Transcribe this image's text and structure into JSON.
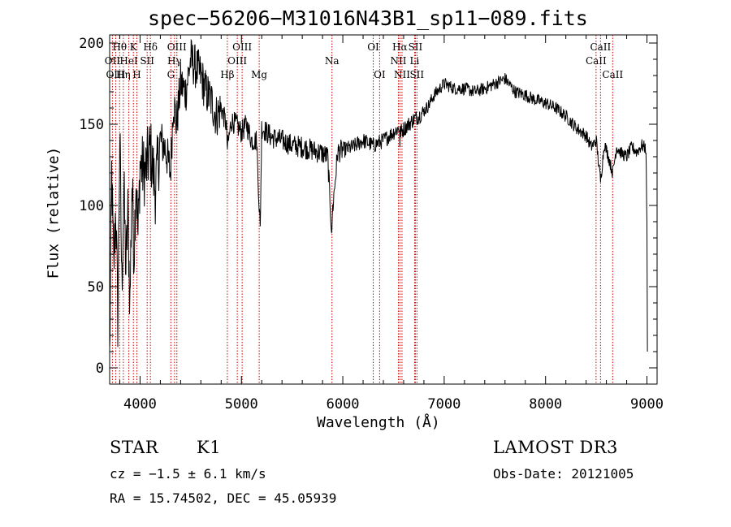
{
  "chart_data": {
    "type": "line",
    "title": "spec−56206−M31016N43B1_sp11−089.fits",
    "xlabel": "Wavelength (Å)",
    "ylabel": "Flux (relative)",
    "xlim": [
      3700,
      9100
    ],
    "ylim": [
      -10,
      205
    ],
    "xticks": [
      4000,
      5000,
      6000,
      7000,
      8000,
      9000
    ],
    "xtick_labels": [
      "4000",
      "5000",
      "6000",
      "7000",
      "8000",
      "9000"
    ],
    "yticks": [
      0,
      50,
      100,
      150,
      200
    ],
    "ytick_labels": [
      "0",
      "50",
      "100",
      "150",
      "200"
    ],
    "grid": false,
    "series": [
      {
        "name": "spectrum",
        "x": [
          3700,
          3720,
          3740,
          3760,
          3780,
          3800,
          3820,
          3840,
          3860,
          3880,
          3900,
          3920,
          3940,
          3960,
          3980,
          4000,
          4050,
          4100,
          4150,
          4200,
          4250,
          4300,
          4330,
          4360,
          4400,
          4450,
          4500,
          4550,
          4600,
          4650,
          4700,
          4750,
          4800,
          4850,
          4862,
          4900,
          4950,
          5000,
          5050,
          5100,
          5150,
          5175,
          5185,
          5200,
          5250,
          5300,
          5400,
          5500,
          5600,
          5700,
          5800,
          5850,
          5890,
          5893,
          5896,
          5950,
          6000,
          6100,
          6200,
          6300,
          6400,
          6500,
          6560,
          6563,
          6566,
          6600,
          6650,
          6700,
          6750,
          6800,
          6850,
          6900,
          7000,
          7100,
          7200,
          7300,
          7400,
          7500,
          7600,
          7700,
          7800,
          7900,
          8000,
          8100,
          8200,
          8300,
          8400,
          8450,
          8500,
          8542,
          8580,
          8620,
          8662,
          8700,
          8750,
          8800,
          8850,
          8900,
          8950,
          8990,
          9000,
          9005
        ],
        "y": [
          5,
          120,
          60,
          100,
          30,
          145,
          50,
          110,
          60,
          95,
          40,
          115,
          70,
          120,
          80,
          125,
          120,
          135,
          110,
          140,
          135,
          120,
          165,
          150,
          175,
          170,
          190,
          185,
          180,
          170,
          165,
          155,
          160,
          150,
          135,
          152,
          150,
          145,
          150,
          140,
          140,
          100,
          85,
          148,
          145,
          142,
          140,
          137,
          136,
          134,
          132,
          130,
          85,
          80,
          95,
          133,
          134,
          136,
          140,
          137,
          140,
          145,
          148,
          135,
          145,
          147,
          150,
          153,
          155,
          158,
          162,
          168,
          175,
          172,
          172,
          170,
          172,
          175,
          178,
          170,
          168,
          165,
          163,
          160,
          155,
          148,
          143,
          136,
          140,
          115,
          138,
          130,
          120,
          136,
          132,
          130,
          136,
          133,
          137,
          135,
          90,
          10
        ]
      }
    ],
    "emission_lines": [
      {
        "label": "Hθ",
        "wavelength": 3798,
        "row": 1
      },
      {
        "label": "OII",
        "wavelength": 3727,
        "row": 2
      },
      {
        "label": "OIII",
        "wavelength": 3760,
        "row": 3
      },
      {
        "label": "HeI",
        "wavelength": 3889,
        "row": 2
      },
      {
        "label": "Hη",
        "wavelength": 3835,
        "row": 3
      },
      {
        "label": "K",
        "wavelength": 3934,
        "row": 1
      },
      {
        "label": "SII",
        "wavelength": 4070,
        "row": 2
      },
      {
        "label": "H",
        "wavelength": 3968,
        "row": 3
      },
      {
        "label": "Hδ",
        "wavelength": 4102,
        "row": 1
      },
      {
        "label": "OIII",
        "wavelength": 4363,
        "row": 1
      },
      {
        "label": "Hγ",
        "wavelength": 4340,
        "row": 2
      },
      {
        "label": "G",
        "wavelength": 4304,
        "row": 3
      },
      {
        "label": "Hβ",
        "wavelength": 4861,
        "row": 3
      },
      {
        "label": "OIII",
        "wavelength": 5007,
        "row": 1
      },
      {
        "label": "OIII",
        "wavelength": 4959,
        "row": 2
      },
      {
        "label": "Mg",
        "wavelength": 5175,
        "row": 3
      },
      {
        "label": "Na",
        "wavelength": 5893,
        "row": 2
      },
      {
        "label": "OI",
        "wavelength": 6300,
        "row": 1
      },
      {
        "label": "OI",
        "wavelength": 6363,
        "row": 3
      },
      {
        "label": "Hα",
        "wavelength": 6563,
        "row": 1
      },
      {
        "label": "SII",
        "wavelength": 6716,
        "row": 1
      },
      {
        "label": "NII",
        "wavelength": 6548,
        "row": 2
      },
      {
        "label": "Li",
        "wavelength": 6708,
        "row": 2
      },
      {
        "label": "NII",
        "wavelength": 6584,
        "row": 3
      },
      {
        "label": "SII",
        "wavelength": 6731,
        "row": 3
      },
      {
        "label": "CaII",
        "wavelength": 8542,
        "row": 1
      },
      {
        "label": "CaII",
        "wavelength": 8498,
        "row": 2
      },
      {
        "label": "CaII",
        "wavelength": 8662,
        "row": 3
      }
    ],
    "colors": {
      "spectrum": "#000000",
      "lines": "#cc0000",
      "axes": "#000000"
    }
  },
  "info": {
    "class": "STAR",
    "subclass": "K1",
    "cz": "cz = −1.5 ± 6.1 km/s",
    "coords": "RA =  15.74502, DEC =  45.05939",
    "survey": "LAMOST DR3",
    "obs_date": "Obs-Date: 20121005"
  }
}
